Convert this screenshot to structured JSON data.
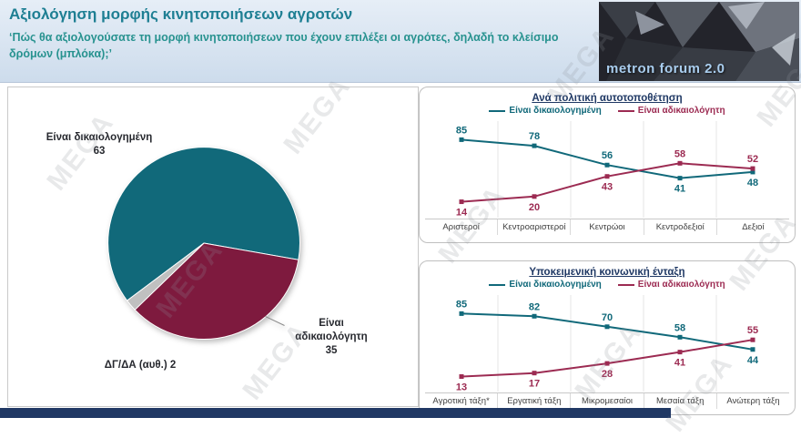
{
  "header": {
    "title": "Αξιολόγηση μορφής κινητοποιήσεων αγροτών",
    "subtitle": "‘Πώς θα αξιολογούσατε τη μορφή κινητοποιήσεων που έχουν επιλέξει οι αγρότες, δηλαδή το κλείσιμο δρόμων (μπλόκα);’",
    "logo_text": "metron forum 2.0"
  },
  "watermark": "MEGA",
  "colors": {
    "teal": "#11697A",
    "maroon": "#7E1A3E",
    "gray": "#C0C0C0",
    "navy": "#203864"
  },
  "chart_data": [
    {
      "type": "pie",
      "title": "",
      "labels": [
        "Είναι δικαιολογημένη",
        "Είναι αδικαιολόγητη",
        "ΔΓ/ΔΑ (αυθ.)"
      ],
      "values": [
        63,
        35,
        2
      ],
      "colors": [
        "#11697A",
        "#7E1A3E",
        "#C0C0C0"
      ]
    },
    {
      "type": "line",
      "title": "Ανά πολιτική αυτοτοποθέτηση",
      "categories": [
        "Αριστεροί",
        "Κεντροαριστεροί",
        "Κεντρώοι",
        "Κεντροδεξιοί",
        "Δεξιοί"
      ],
      "ylim": [
        0,
        100
      ],
      "legend_position": "top",
      "series": [
        {
          "name": "Είναι δικαιολογημένη",
          "color": "#11697A",
          "values": [
            85,
            78,
            56,
            41,
            48
          ]
        },
        {
          "name": "Είναι αδικαιολόγητη",
          "color": "#9C2B52",
          "values": [
            14,
            20,
            43,
            58,
            52
          ]
        }
      ]
    },
    {
      "type": "line",
      "title": "Υποκειμενική κοινωνική ένταξη",
      "categories": [
        "Αγροτική τάξη*",
        "Εργατική τάξη",
        "Μικρομεσαίοι",
        "Μεσαία τάξη",
        "Ανώτερη τάξη"
      ],
      "ylim": [
        0,
        100
      ],
      "legend_position": "top",
      "series": [
        {
          "name": "Είναι δικαιολογημένη",
          "color": "#11697A",
          "values": [
            85,
            82,
            70,
            58,
            44
          ]
        },
        {
          "name": "Είναι αδικαιολόγητη",
          "color": "#9C2B52",
          "values": [
            13,
            17,
            28,
            41,
            55
          ]
        }
      ]
    }
  ]
}
